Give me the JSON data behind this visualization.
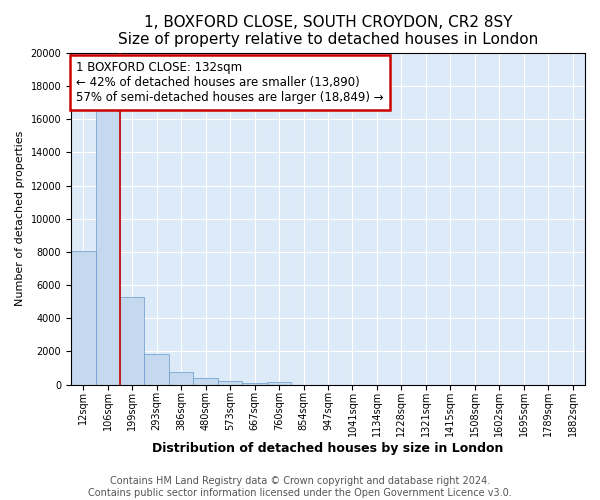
{
  "title1": "1, BOXFORD CLOSE, SOUTH CROYDON, CR2 8SY",
  "title2": "Size of property relative to detached houses in London",
  "xlabel": "Distribution of detached houses by size in London",
  "ylabel": "Number of detached properties",
  "categories": [
    "12sqm",
    "106sqm",
    "199sqm",
    "293sqm",
    "386sqm",
    "480sqm",
    "573sqm",
    "667sqm",
    "760sqm",
    "854sqm",
    "947sqm",
    "1041sqm",
    "1134sqm",
    "1228sqm",
    "1321sqm",
    "1415sqm",
    "1508sqm",
    "1602sqm",
    "1695sqm",
    "1789sqm",
    "1882sqm"
  ],
  "values": [
    8050,
    16600,
    5300,
    1850,
    750,
    380,
    200,
    130,
    150,
    0,
    0,
    0,
    0,
    0,
    0,
    0,
    0,
    0,
    0,
    0,
    0
  ],
  "bar_color": "#c5d9ee",
  "bar_edge_color": "#6699cc",
  "red_line_x": 1.5,
  "annotation_title": "1 BOXFORD CLOSE: 132sqm",
  "annotation_line1": "← 42% of detached houses are smaller (13,890)",
  "annotation_line2": "57% of semi-detached houses are larger (18,849) →",
  "annotation_box_color": "#ffffff",
  "annotation_box_edge": "#cc0000",
  "red_line_color": "#cc0000",
  "footer1": "Contains HM Land Registry data © Crown copyright and database right 2024.",
  "footer2": "Contains public sector information licensed under the Open Government Licence v3.0.",
  "ylim": [
    0,
    20000
  ],
  "yticks": [
    0,
    2000,
    4000,
    6000,
    8000,
    10000,
    12000,
    14000,
    16000,
    18000,
    20000
  ],
  "bg_color": "#ddeaf7",
  "title1_fontsize": 11,
  "title2_fontsize": 9.5,
  "xlabel_fontsize": 9,
  "ylabel_fontsize": 8,
  "tick_fontsize": 7,
  "footer_fontsize": 7,
  "ann_fontsize": 8.5
}
